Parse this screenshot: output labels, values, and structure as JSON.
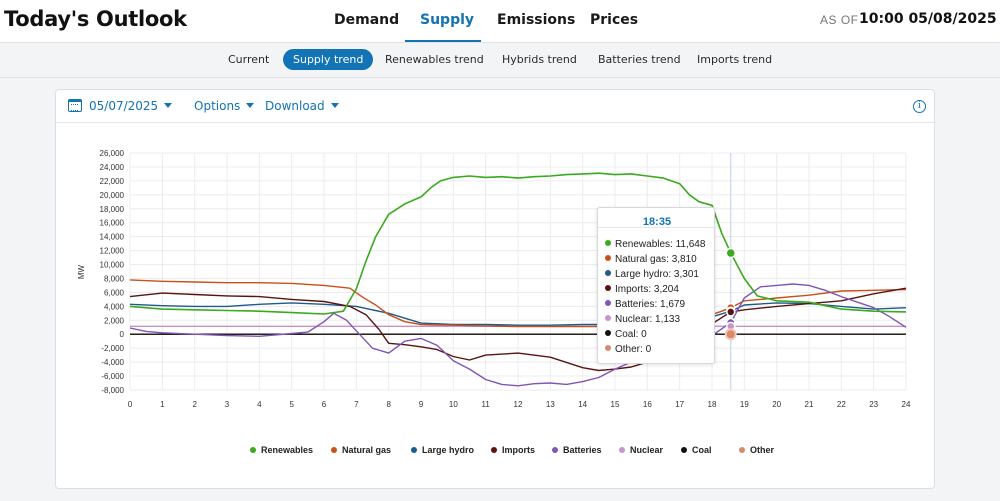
{
  "header": {
    "title": "Today's Outlook",
    "tabs": [
      {
        "label": "Demand",
        "active": false
      },
      {
        "label": "Supply",
        "active": true
      },
      {
        "label": "Emissions",
        "active": false
      },
      {
        "label": "Prices",
        "active": false
      }
    ],
    "as_of_label": "AS OF",
    "as_of_value": "10:00 05/08/2025"
  },
  "subtabs": [
    {
      "label": "Current",
      "active": false
    },
    {
      "label": "Supply trend",
      "active": true
    },
    {
      "label": "Renewables trend",
      "active": false
    },
    {
      "label": "Hybrids trend",
      "active": false
    },
    {
      "label": "Batteries trend",
      "active": false
    },
    {
      "label": "Imports trend",
      "active": false
    }
  ],
  "toolbar": {
    "date": "05/07/2025",
    "options_label": "Options",
    "download_label": "Download",
    "info_icon": "info-icon",
    "calendar_icon": "calendar-icon"
  },
  "tooltip": {
    "time": "18:35",
    "rows": [
      {
        "label": "Renewables: 11,648",
        "color": "#3aaa1e"
      },
      {
        "label": "Natural gas: 3,810",
        "color": "#c8501a"
      },
      {
        "label": "Large hydro: 3,301",
        "color": "#1c5b8a"
      },
      {
        "label": "Imports: 3,204",
        "color": "#5a1410"
      },
      {
        "label": "Batteries: 1,679",
        "color": "#7f55b8"
      },
      {
        "label": "Nuclear: 1,133",
        "color": "#c993c9"
      },
      {
        "label": "Coal: 0",
        "color": "#111111"
      },
      {
        "label": "Other: 0",
        "color": "#d98a6a"
      }
    ]
  },
  "chart_data": {
    "type": "line",
    "ylabel": "MW",
    "xlim": [
      0,
      24
    ],
    "ylim": [
      -8000,
      26000
    ],
    "x_ticks": [
      "0",
      "1",
      "2",
      "3",
      "4",
      "5",
      "6",
      "7",
      "8",
      "9",
      "10",
      "11",
      "12",
      "13",
      "14",
      "15",
      "16",
      "17",
      "18",
      "19",
      "20",
      "21",
      "22",
      "23",
      "24"
    ],
    "y_ticks": [
      "26,000",
      "24,000",
      "22,000",
      "20,000",
      "18,000",
      "16,000",
      "14,000",
      "12,000",
      "10,000",
      "8,000",
      "6,000",
      "4,000",
      "2,000",
      "0",
      "-2,000",
      "-4,000",
      "-6,000",
      "-8,000"
    ],
    "grid": true,
    "legend_position": "bottom",
    "cursor_x": 18.58,
    "series": [
      {
        "name": "Renewables",
        "color": "#3aaa1e",
        "points": [
          [
            0,
            4000
          ],
          [
            1,
            3600
          ],
          [
            2,
            3500
          ],
          [
            3,
            3400
          ],
          [
            4,
            3300
          ],
          [
            5,
            3100
          ],
          [
            6,
            2900
          ],
          [
            6.6,
            3300
          ],
          [
            7,
            6500
          ],
          [
            7.3,
            10500
          ],
          [
            7.6,
            14000
          ],
          [
            8,
            17200
          ],
          [
            8.5,
            18700
          ],
          [
            9,
            19700
          ],
          [
            9.3,
            21000
          ],
          [
            9.6,
            22000
          ],
          [
            10,
            22500
          ],
          [
            10.5,
            22700
          ],
          [
            11,
            22500
          ],
          [
            11.5,
            22600
          ],
          [
            12,
            22400
          ],
          [
            12.5,
            22600
          ],
          [
            13,
            22700
          ],
          [
            13.5,
            22900
          ],
          [
            14,
            23000
          ],
          [
            14.5,
            23100
          ],
          [
            15,
            22900
          ],
          [
            15.5,
            23000
          ],
          [
            16,
            22700
          ],
          [
            16.5,
            22400
          ],
          [
            17,
            21600
          ],
          [
            17.3,
            20000
          ],
          [
            17.6,
            19000
          ],
          [
            18,
            18500
          ],
          [
            18.3,
            14500
          ],
          [
            18.58,
            11648
          ],
          [
            19,
            8000
          ],
          [
            19.4,
            5500
          ],
          [
            20,
            4800
          ],
          [
            21,
            4600
          ],
          [
            22,
            3600
          ],
          [
            23,
            3300
          ],
          [
            24,
            3200
          ]
        ]
      },
      {
        "name": "Natural gas",
        "color": "#c8501a",
        "points": [
          [
            0,
            7800
          ],
          [
            1,
            7600
          ],
          [
            2,
            7500
          ],
          [
            3,
            7400
          ],
          [
            4,
            7400
          ],
          [
            5,
            7300
          ],
          [
            6,
            7000
          ],
          [
            6.8,
            6600
          ],
          [
            7.2,
            5300
          ],
          [
            7.6,
            4200
          ],
          [
            8,
            2800
          ],
          [
            8.5,
            1800
          ],
          [
            9,
            1400
          ],
          [
            10,
            1300
          ],
          [
            11,
            1200
          ],
          [
            12,
            1100
          ],
          [
            13,
            1100
          ],
          [
            14,
            1100
          ],
          [
            15,
            1100
          ],
          [
            16,
            1100
          ],
          [
            17,
            1500
          ],
          [
            17.8,
            2500
          ],
          [
            18.3,
            3300
          ],
          [
            18.58,
            3810
          ],
          [
            19,
            4800
          ],
          [
            20,
            5200
          ],
          [
            21,
            5600
          ],
          [
            22,
            6200
          ],
          [
            23,
            6300
          ],
          [
            24,
            6400
          ]
        ]
      },
      {
        "name": "Large hydro",
        "color": "#1c5b8a",
        "points": [
          [
            0,
            4300
          ],
          [
            1,
            4100
          ],
          [
            2,
            4000
          ],
          [
            3,
            4000
          ],
          [
            4,
            4300
          ],
          [
            5,
            4500
          ],
          [
            6,
            4300
          ],
          [
            7,
            4000
          ],
          [
            8,
            3000
          ],
          [
            9,
            1600
          ],
          [
            10,
            1400
          ],
          [
            11,
            1400
          ],
          [
            12,
            1300
          ],
          [
            13,
            1300
          ],
          [
            14,
            1400
          ],
          [
            15,
            1400
          ],
          [
            16,
            1300
          ],
          [
            17,
            1400
          ],
          [
            18,
            2500
          ],
          [
            18.58,
            3301
          ],
          [
            19,
            4200
          ],
          [
            20,
            4500
          ],
          [
            21,
            4400
          ],
          [
            22,
            4000
          ],
          [
            23,
            3600
          ],
          [
            24,
            3800
          ]
        ]
      },
      {
        "name": "Imports",
        "color": "#5a1410",
        "points": [
          [
            0,
            5400
          ],
          [
            1,
            5900
          ],
          [
            2,
            5700
          ],
          [
            3,
            5500
          ],
          [
            4,
            5400
          ],
          [
            5,
            5000
          ],
          [
            6,
            4700
          ],
          [
            6.8,
            4000
          ],
          [
            7.3,
            2800
          ],
          [
            7.7,
            700
          ],
          [
            8,
            -1300
          ],
          [
            8.5,
            -1500
          ],
          [
            9,
            -1800
          ],
          [
            9.5,
            -2200
          ],
          [
            10,
            -3200
          ],
          [
            10.5,
            -3700
          ],
          [
            11,
            -3000
          ],
          [
            12,
            -2700
          ],
          [
            13,
            -3300
          ],
          [
            14,
            -4800
          ],
          [
            14.5,
            -5200
          ],
          [
            15,
            -5000
          ],
          [
            15.5,
            -4700
          ],
          [
            16,
            -4000
          ],
          [
            16.5,
            -3000
          ],
          [
            17,
            -1500
          ],
          [
            17.5,
            -500
          ],
          [
            18,
            1500
          ],
          [
            18.58,
            3204
          ],
          [
            19,
            3500
          ],
          [
            20,
            4000
          ],
          [
            21,
            4400
          ],
          [
            22,
            4800
          ],
          [
            23,
            5800
          ],
          [
            24,
            6600
          ]
        ]
      },
      {
        "name": "Batteries",
        "color": "#7f55b8",
        "points": [
          [
            0,
            900
          ],
          [
            0.5,
            400
          ],
          [
            1,
            200
          ],
          [
            2,
            0
          ],
          [
            3,
            -200
          ],
          [
            4,
            -300
          ],
          [
            5,
            100
          ],
          [
            5.5,
            300
          ],
          [
            6,
            1800
          ],
          [
            6.3,
            3000
          ],
          [
            6.7,
            2000
          ],
          [
            7,
            500
          ],
          [
            7.5,
            -2000
          ],
          [
            8,
            -2700
          ],
          [
            8.5,
            -1000
          ],
          [
            9,
            -600
          ],
          [
            9.5,
            -1600
          ],
          [
            10,
            -3800
          ],
          [
            10.5,
            -5000
          ],
          [
            11,
            -6500
          ],
          [
            11.5,
            -7200
          ],
          [
            12,
            -7400
          ],
          [
            12.5,
            -7100
          ],
          [
            13,
            -7000
          ],
          [
            13.5,
            -7200
          ],
          [
            14,
            -6800
          ],
          [
            14.5,
            -6200
          ],
          [
            15,
            -5000
          ],
          [
            15.5,
            -4000
          ],
          [
            16,
            -3000
          ],
          [
            16.5,
            -2000
          ],
          [
            17,
            -500
          ],
          [
            17.5,
            -600
          ],
          [
            18,
            -200
          ],
          [
            18.58,
            1679
          ],
          [
            19,
            5200
          ],
          [
            19.5,
            6800
          ],
          [
            20,
            7000
          ],
          [
            20.5,
            7200
          ],
          [
            21,
            7000
          ],
          [
            21.5,
            6300
          ],
          [
            22,
            5400
          ],
          [
            22.5,
            4600
          ],
          [
            23,
            3800
          ],
          [
            23.5,
            2500
          ],
          [
            24,
            1000
          ]
        ]
      },
      {
        "name": "Nuclear",
        "color": "#c993c9",
        "points": [
          [
            0,
            1133
          ],
          [
            24,
            1133
          ]
        ]
      },
      {
        "name": "Coal",
        "color": "#111111",
        "points": [
          [
            0,
            0
          ],
          [
            24,
            0
          ]
        ]
      },
      {
        "name": "Other",
        "color": "#d98a6a",
        "points": [
          [
            0,
            0
          ],
          [
            24,
            0
          ]
        ]
      }
    ]
  }
}
